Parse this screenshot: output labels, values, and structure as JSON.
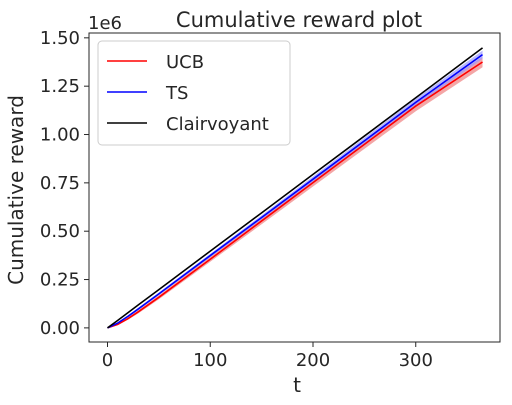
{
  "chart_data": {
    "type": "line",
    "title": "Cumulative reward plot",
    "xlabel": "t",
    "ylabel": "Cumulative reward",
    "y_offset_label": "1e6",
    "xlim": [
      -18,
      382
    ],
    "ylim": [
      -0.073,
      1.525
    ],
    "x_ticks": [
      0,
      100,
      200,
      300
    ],
    "x_tick_labels": [
      "0",
      "100",
      "200",
      "300"
    ],
    "y_ticks": [
      0.0,
      0.25,
      0.5,
      0.75,
      1.0,
      1.25,
      1.5
    ],
    "y_tick_labels": [
      "0.00",
      "0.25",
      "0.50",
      "0.75",
      "1.00",
      "1.25",
      "1.50"
    ],
    "grid": false,
    "legend_position": "top-left",
    "x": [
      0,
      10,
      20,
      30,
      50,
      100,
      150,
      200,
      250,
      300,
      365
    ],
    "series": [
      {
        "name": "UCB",
        "color": "#ff0000",
        "band_color": "#f08080",
        "values": [
          0.0,
          0.018,
          0.048,
          0.083,
          0.158,
          0.355,
          0.553,
          0.751,
          0.949,
          1.147,
          1.375
        ],
        "band_lower": [
          0.0,
          0.015,
          0.042,
          0.075,
          0.148,
          0.342,
          0.536,
          0.731,
          0.926,
          1.12,
          1.348
        ],
        "band_upper": [
          0.0,
          0.021,
          0.054,
          0.091,
          0.168,
          0.368,
          0.57,
          0.771,
          0.972,
          1.174,
          1.402
        ]
      },
      {
        "name": "TS",
        "color": "#0000ff",
        "band_color": "#9999ff",
        "values": [
          0.0,
          0.025,
          0.06,
          0.098,
          0.176,
          0.374,
          0.571,
          0.769,
          0.967,
          1.166,
          1.413
        ],
        "band_lower": [
          0.0,
          0.022,
          0.055,
          0.092,
          0.169,
          0.365,
          0.56,
          0.755,
          0.951,
          1.147,
          1.392
        ],
        "band_upper": [
          0.0,
          0.028,
          0.065,
          0.104,
          0.183,
          0.383,
          0.582,
          0.783,
          0.983,
          1.185,
          1.434
        ]
      },
      {
        "name": "Clairvoyant",
        "color": "#000000",
        "values": [
          0.0,
          0.039,
          0.079,
          0.119,
          0.198,
          0.397,
          0.595,
          0.794,
          0.992,
          1.19,
          1.448
        ]
      }
    ]
  }
}
